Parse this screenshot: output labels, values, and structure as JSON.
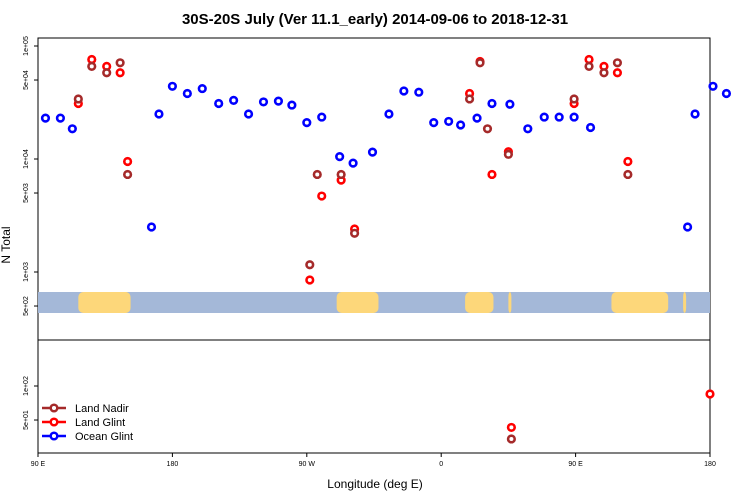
{
  "chart_data": {
    "type": "scatter",
    "title": "30S-20S July (Ver 11.1_early)   2014-09-06 to 2018-12-31",
    "xlabel": "Longitude (deg E)",
    "ylabel": "N Total",
    "x_ticks": [
      {
        "value": 90,
        "label": "90 E"
      },
      {
        "value": 180,
        "label": "180"
      },
      {
        "value": 270,
        "label": "90 W"
      },
      {
        "value": 360,
        "label": "0"
      },
      {
        "value": 450,
        "label": "90 E"
      },
      {
        "value": 540,
        "label": "180"
      }
    ],
    "xlim": [
      90,
      540
    ],
    "y_scale": "log",
    "upper_ticks": [
      "1e+05",
      "5e+04",
      "1e+04",
      "5e+03",
      "1e+03",
      "5e+02"
    ],
    "lower_ticks": [
      "1e+02",
      "5e+01"
    ],
    "colors": {
      "land_nadir": "#a52a2a",
      "land_glint": "#ff0000",
      "ocean_glint": "#0000ff",
      "ocean": "#a4b8d8",
      "land": "#fdd77a"
    },
    "legend": [
      "Land Nadir",
      "Land Glint",
      "Ocean Glint"
    ],
    "land_segments": [
      [
        117,
        152
      ],
      [
        290,
        318
      ],
      [
        376,
        395
      ],
      [
        405,
        407
      ],
      [
        474,
        512
      ],
      [
        522,
        524
      ]
    ],
    "series": [
      {
        "name": "Ocean Glint",
        "key": "ocean_glint",
        "points": [
          [
            95,
            23000
          ],
          [
            105,
            23000
          ],
          [
            113,
            18500
          ],
          [
            166,
            2500
          ],
          [
            171,
            25000
          ],
          [
            180,
            44000
          ],
          [
            190,
            38000
          ],
          [
            200,
            42000
          ],
          [
            211,
            31000
          ],
          [
            221,
            33000
          ],
          [
            231,
            25000
          ],
          [
            241,
            32000
          ],
          [
            251,
            32500
          ],
          [
            260,
            30000
          ],
          [
            270,
            21000
          ],
          [
            280,
            23500
          ],
          [
            292,
            10500
          ],
          [
            301,
            9200
          ],
          [
            314,
            11500
          ],
          [
            325,
            25000
          ],
          [
            335,
            40000
          ],
          [
            345,
            39000
          ],
          [
            355,
            21000
          ],
          [
            365,
            21500
          ],
          [
            373,
            20000
          ],
          [
            384,
            23000
          ],
          [
            394,
            31000
          ],
          [
            406,
            30500
          ],
          [
            418,
            18500
          ],
          [
            429,
            23500
          ],
          [
            439,
            23500
          ],
          [
            449,
            23500
          ],
          [
            460,
            19000
          ],
          [
            525,
            2500
          ],
          [
            530,
            25000
          ],
          [
            542,
            44000
          ],
          [
            551,
            38000
          ]
        ]
      },
      {
        "name": "Land Glint",
        "key": "land_glint",
        "points": [
          [
            117,
            31000
          ],
          [
            126,
            76000
          ],
          [
            136,
            66000
          ],
          [
            145,
            58000
          ],
          [
            150,
            9500
          ],
          [
            272,
            850
          ],
          [
            280,
            4700
          ],
          [
            293,
            6500
          ],
          [
            302,
            2400
          ],
          [
            379,
            38000
          ],
          [
            386,
            73000
          ],
          [
            394,
            7300
          ],
          [
            405,
            11600
          ],
          [
            407,
            43
          ],
          [
            449,
            31000
          ],
          [
            459,
            76000
          ],
          [
            469,
            66000
          ],
          [
            478,
            58000
          ],
          [
            485,
            9500
          ],
          [
            540,
            85
          ]
        ]
      },
      {
        "name": "Land Nadir",
        "key": "land_nadir",
        "points": [
          [
            117,
            34000
          ],
          [
            126,
            66000
          ],
          [
            136,
            58000
          ],
          [
            145,
            71000
          ],
          [
            150,
            7300
          ],
          [
            272,
            1160
          ],
          [
            277,
            7300
          ],
          [
            293,
            7300
          ],
          [
            302,
            2200
          ],
          [
            379,
            34000
          ],
          [
            386,
            71000
          ],
          [
            391,
            18500
          ],
          [
            405,
            11000
          ],
          [
            407,
            34
          ],
          [
            449,
            34000
          ],
          [
            459,
            66000
          ],
          [
            469,
            58000
          ],
          [
            478,
            71000
          ],
          [
            485,
            7300
          ]
        ]
      }
    ]
  }
}
